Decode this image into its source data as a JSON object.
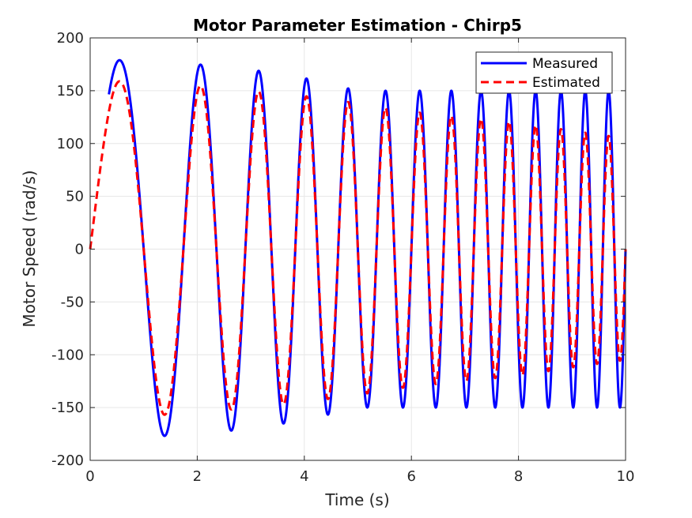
{
  "chart_data": {
    "type": "line",
    "title": "Motor Parameter Estimation - Chirp5",
    "xlabel": "Time (s)",
    "ylabel": "Motor Speed (rad/s)",
    "xlim": [
      0,
      10
    ],
    "ylim": [
      -200,
      200
    ],
    "xticks": [
      0,
      2,
      4,
      6,
      8,
      10
    ],
    "yticks": [
      -200,
      -150,
      -100,
      -50,
      0,
      50,
      100,
      150,
      200
    ],
    "grid": true,
    "legend_position": "top-right",
    "signal": {
      "start_frequency_hz": 0.4,
      "end_frequency_hz": 2.4,
      "duration_s": 10
    },
    "series": [
      {
        "name": "Measured",
        "color": "#0000ff",
        "style": "solid",
        "start_time": 0.35,
        "amplitude_envelope": {
          "x": [
            0,
            1,
            2,
            3,
            4,
            5,
            6,
            7,
            8,
            9,
            10
          ],
          "y": [
            180,
            178,
            175,
            170,
            162,
            150,
            150,
            150,
            150,
            150,
            150
          ]
        }
      },
      {
        "name": "Estimated",
        "color": "#ff0000",
        "style": "dashed",
        "start_time": 0,
        "amplitude_envelope": {
          "x": [
            0,
            1,
            2,
            3,
            4,
            5,
            6,
            7,
            8,
            9,
            10
          ],
          "y": [
            160,
            158,
            155,
            150,
            145,
            138,
            130,
            125,
            120,
            112,
            105
          ]
        }
      }
    ]
  }
}
